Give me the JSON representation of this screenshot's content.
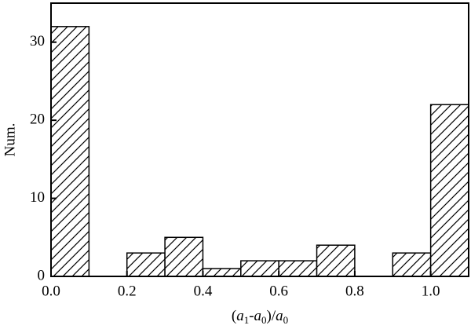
{
  "chart_data": {
    "type": "histogram",
    "x_label": "(a1-a0)/a0",
    "y_label": "Num.",
    "bins": [
      0,
      0.1,
      0.2,
      0.3,
      0.4,
      0.5,
      0.6,
      0.7,
      0.8,
      0.9,
      1.0,
      1.1
    ],
    "values": [
      32,
      0,
      3,
      5,
      1,
      2,
      2,
      4,
      0,
      3,
      22
    ],
    "xlim": [
      0,
      1.1
    ],
    "ylim": [
      0,
      35
    ],
    "xticks": [
      {
        "value": 0,
        "label": "0.0"
      },
      0.2,
      0.4,
      0.6,
      0.8,
      {
        "value": 1,
        "label": "1.0"
      }
    ],
    "yticks": [
      0,
      10,
      20,
      30
    ],
    "color": "#000000"
  }
}
